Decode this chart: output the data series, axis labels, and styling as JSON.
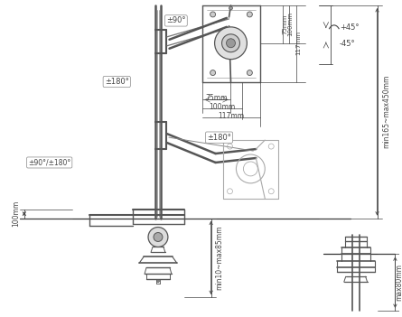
{
  "bg_color": "#ffffff",
  "lc": "#555555",
  "llc": "#aaaaaa",
  "dc": "#444444",
  "annotations": {
    "pm90": "±90°",
    "pm180_upper": "±180°",
    "pm180_lower": "±180°",
    "pm90_pm180": "±90°/±180°",
    "tilt_plus": "+45°",
    "tilt_minus": "-45°",
    "vesa_75v": "75mm",
    "vesa_100v": "100mm",
    "vesa_117v": "117mm",
    "vesa_75h": "75mm",
    "vesa_100h": "100mm",
    "vesa_117h": "117mm",
    "height_range": "min165~max450mm",
    "clamp_depth": "100mm",
    "desk_range": "min10~max85mm",
    "max80": "max80mm"
  }
}
